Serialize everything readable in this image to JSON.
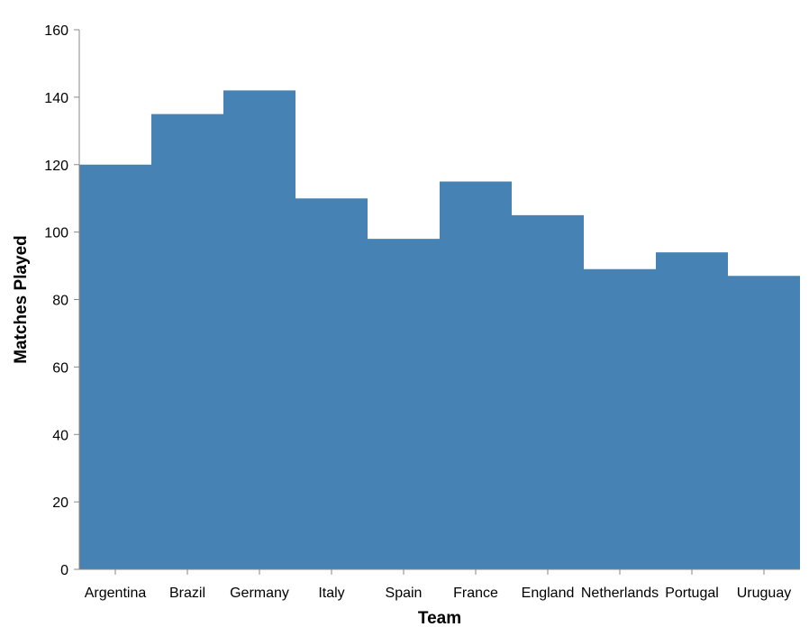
{
  "chart_data": {
    "type": "area",
    "interpolation": "step",
    "title": "",
    "xlabel": "Team",
    "ylabel": "Matches Played",
    "categories": [
      "Argentina",
      "Brazil",
      "Germany",
      "Italy",
      "Spain",
      "France",
      "England",
      "Netherlands",
      "Portugal",
      "Uruguay"
    ],
    "values": [
      120,
      135,
      142,
      110,
      98,
      115,
      105,
      89,
      94,
      87
    ],
    "ylim": [
      0,
      160
    ],
    "yticks": [
      0,
      20,
      40,
      60,
      80,
      100,
      120,
      140,
      160
    ],
    "grid": false,
    "color": "#4682b4"
  }
}
